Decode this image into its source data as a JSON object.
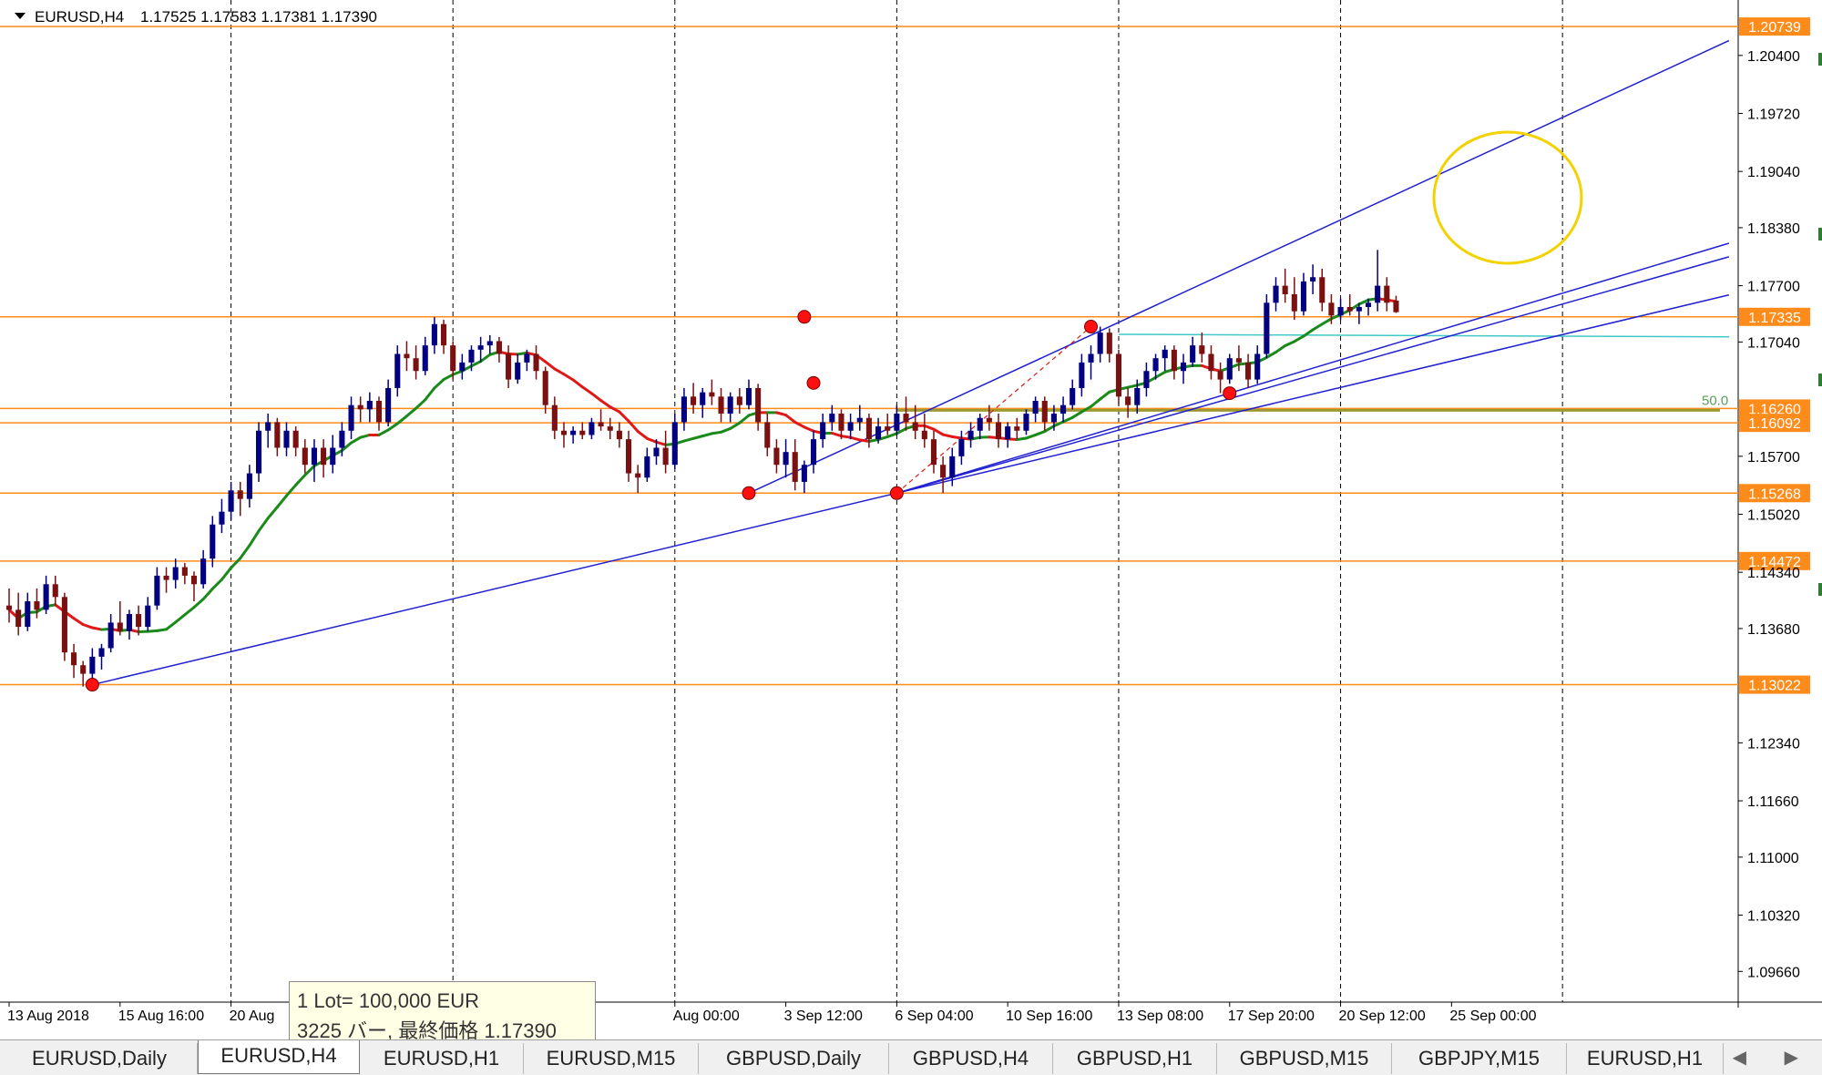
{
  "header": {
    "symbol": "EURUSD,H4",
    "ohlc": "1.17525 1.17583 1.17381 1.17390"
  },
  "colors": {
    "bull": "#000080",
    "bear": "#7a1010",
    "ma_up": "#1a8a1a",
    "ma_down": "#e01818",
    "level": "#ff8c1a",
    "trend": "#2020d0",
    "grid": "#000000",
    "circle": "#f2d200",
    "fib": "#9a9a30",
    "cyan": "#40c8c8"
  },
  "chart_data": {
    "type": "candlestick",
    "y_range": [
      1.093,
      1.2105
    ],
    "x_range": [
      0,
      187
    ],
    "x_ticks": [
      {
        "i": 0,
        "label": "13 Aug 2018"
      },
      {
        "i": 12,
        "label": "15 Aug 16:00"
      },
      {
        "i": 24,
        "label": "20 Aug"
      },
      {
        "i": 72,
        "label": "Aug 00:00"
      },
      {
        "i": 84,
        "label": "3 Sep 12:00"
      },
      {
        "i": 96,
        "label": "6 Sep 04:00"
      },
      {
        "i": 108,
        "label": "10 Sep 16:00"
      },
      {
        "i": 120,
        "label": "13 Sep 08:00"
      },
      {
        "i": 132,
        "label": "17 Sep 20:00"
      },
      {
        "i": 144,
        "label": "20 Sep 12:00"
      },
      {
        "i": 156,
        "label": "25 Sep 00:00"
      }
    ],
    "vgrid_i": [
      24,
      48,
      72,
      96,
      120,
      144,
      168
    ],
    "y_ticks": [
      "1.20400",
      "1.19720",
      "1.19040",
      "1.18380",
      "1.17700",
      "1.17040",
      "1.15700",
      "1.15020",
      "1.14340",
      "1.13680",
      "1.12340",
      "1.11660",
      "1.11000",
      "1.10320",
      "1.09660"
    ],
    "levels": [
      {
        "price": 1.20739,
        "label": "1.20739",
        "tag": true
      },
      {
        "price": 1.17335,
        "label": "1.17335",
        "tag": true
      },
      {
        "price": 1.1626,
        "label": "1.16260",
        "tag": true
      },
      {
        "price": 1.16092,
        "label": "1.16092",
        "tag": true
      },
      {
        "price": 1.15268,
        "label": "1.15268",
        "tag": true
      },
      {
        "price": 1.14472,
        "label": "1.14472",
        "tag": true
      },
      {
        "price": 1.13022,
        "label": "1.13022",
        "tag": true
      }
    ],
    "fib_label": "50.0",
    "anchors": [
      {
        "i": 86,
        "price": 1.17335
      },
      {
        "i": 9,
        "price": 1.13022
      },
      {
        "i": 80,
        "price": 1.15268
      },
      {
        "i": 87,
        "price": 1.1656
      },
      {
        "i": 96,
        "price": 1.15268
      },
      {
        "i": 117,
        "price": 1.1722
      },
      {
        "i": 132,
        "price": 1.1644
      }
    ],
    "ohlc": [
      [
        1.1395,
        1.1415,
        1.1375,
        1.139
      ],
      [
        1.139,
        1.141,
        1.136,
        1.137
      ],
      [
        1.137,
        1.141,
        1.1365,
        1.14
      ],
      [
        1.14,
        1.1415,
        1.138,
        1.139
      ],
      [
        1.139,
        1.143,
        1.1385,
        1.142
      ],
      [
        1.142,
        1.143,
        1.1395,
        1.1405
      ],
      [
        1.1405,
        1.141,
        1.133,
        1.134
      ],
      [
        1.134,
        1.135,
        1.131,
        1.1325
      ],
      [
        1.1325,
        1.133,
        1.13,
        1.1315
      ],
      [
        1.1315,
        1.1345,
        1.1302,
        1.1335
      ],
      [
        1.1335,
        1.135,
        1.132,
        1.1345
      ],
      [
        1.1345,
        1.1385,
        1.134,
        1.1375
      ],
      [
        1.1375,
        1.14,
        1.136,
        1.1365
      ],
      [
        1.1365,
        1.139,
        1.1355,
        1.1385
      ],
      [
        1.1385,
        1.1395,
        1.136,
        1.137
      ],
      [
        1.137,
        1.1405,
        1.1365,
        1.1395
      ],
      [
        1.1395,
        1.144,
        1.139,
        1.143
      ],
      [
        1.143,
        1.144,
        1.141,
        1.1425
      ],
      [
        1.1425,
        1.145,
        1.1415,
        1.144
      ],
      [
        1.144,
        1.1445,
        1.142,
        1.143
      ],
      [
        1.143,
        1.1435,
        1.14,
        1.142
      ],
      [
        1.142,
        1.146,
        1.1415,
        1.145
      ],
      [
        1.145,
        1.15,
        1.144,
        1.149
      ],
      [
        1.149,
        1.152,
        1.148,
        1.1505
      ],
      [
        1.1505,
        1.154,
        1.1495,
        1.153
      ],
      [
        1.153,
        1.154,
        1.15,
        1.152
      ],
      [
        1.152,
        1.156,
        1.151,
        1.155
      ],
      [
        1.155,
        1.161,
        1.154,
        1.16
      ],
      [
        1.16,
        1.162,
        1.158,
        1.161
      ],
      [
        1.161,
        1.1615,
        1.157,
        1.158
      ],
      [
        1.158,
        1.161,
        1.157,
        1.16
      ],
      [
        1.16,
        1.1605,
        1.157,
        1.158
      ],
      [
        1.158,
        1.159,
        1.155,
        1.156
      ],
      [
        1.156,
        1.159,
        1.154,
        1.158
      ],
      [
        1.158,
        1.159,
        1.1545,
        1.156
      ],
      [
        1.156,
        1.1595,
        1.155,
        1.158
      ],
      [
        1.158,
        1.161,
        1.157,
        1.16
      ],
      [
        1.16,
        1.164,
        1.159,
        1.163
      ],
      [
        1.163,
        1.164,
        1.161,
        1.1625
      ],
      [
        1.1625,
        1.1645,
        1.161,
        1.1635
      ],
      [
        1.1635,
        1.164,
        1.16,
        1.161
      ],
      [
        1.161,
        1.166,
        1.1605,
        1.165
      ],
      [
        1.165,
        1.17,
        1.164,
        1.169
      ],
      [
        1.169,
        1.1705,
        1.167,
        1.1685
      ],
      [
        1.1685,
        1.17,
        1.166,
        1.167
      ],
      [
        1.167,
        1.171,
        1.1665,
        1.17
      ],
      [
        1.17,
        1.1733,
        1.169,
        1.1725
      ],
      [
        1.1725,
        1.173,
        1.169,
        1.17
      ],
      [
        1.17,
        1.1705,
        1.166,
        1.167
      ],
      [
        1.167,
        1.169,
        1.166,
        1.168
      ],
      [
        1.168,
        1.17,
        1.167,
        1.1695
      ],
      [
        1.1695,
        1.171,
        1.168,
        1.17
      ],
      [
        1.17,
        1.1712,
        1.169,
        1.1705
      ],
      [
        1.1705,
        1.171,
        1.168,
        1.169
      ],
      [
        1.169,
        1.17,
        1.165,
        1.166
      ],
      [
        1.166,
        1.169,
        1.1655,
        1.168
      ],
      [
        1.168,
        1.1695,
        1.167,
        1.169
      ],
      [
        1.169,
        1.17,
        1.166,
        1.167
      ],
      [
        1.167,
        1.1675,
        1.162,
        1.163
      ],
      [
        1.163,
        1.164,
        1.159,
        1.16
      ],
      [
        1.16,
        1.161,
        1.158,
        1.1595
      ],
      [
        1.1595,
        1.1605,
        1.1585,
        1.16
      ],
      [
        1.16,
        1.161,
        1.159,
        1.1595
      ],
      [
        1.1595,
        1.1615,
        1.159,
        1.161
      ],
      [
        1.161,
        1.1625,
        1.16,
        1.1605
      ],
      [
        1.1605,
        1.1615,
        1.159,
        1.16
      ],
      [
        1.16,
        1.161,
        1.158,
        1.159
      ],
      [
        1.159,
        1.16,
        1.154,
        1.155
      ],
      [
        1.155,
        1.156,
        1.1527,
        1.1545
      ],
      [
        1.1545,
        1.158,
        1.154,
        1.157
      ],
      [
        1.157,
        1.159,
        1.156,
        1.158
      ],
      [
        1.158,
        1.16,
        1.155,
        1.156
      ],
      [
        1.156,
        1.162,
        1.1555,
        1.161
      ],
      [
        1.161,
        1.165,
        1.16,
        1.164
      ],
      [
        1.164,
        1.1656,
        1.162,
        1.163
      ],
      [
        1.163,
        1.165,
        1.1615,
        1.1645
      ],
      [
        1.1645,
        1.166,
        1.163,
        1.164
      ],
      [
        1.164,
        1.165,
        1.161,
        1.162
      ],
      [
        1.162,
        1.1645,
        1.161,
        1.164
      ],
      [
        1.164,
        1.165,
        1.162,
        1.163
      ],
      [
        1.163,
        1.166,
        1.1625,
        1.165
      ],
      [
        1.165,
        1.1655,
        1.16,
        1.161
      ],
      [
        1.161,
        1.162,
        1.157,
        1.158
      ],
      [
        1.158,
        1.159,
        1.155,
        1.156
      ],
      [
        1.156,
        1.159,
        1.1545,
        1.1575
      ],
      [
        1.1575,
        1.159,
        1.153,
        1.154
      ],
      [
        1.154,
        1.1565,
        1.1527,
        1.156
      ],
      [
        1.156,
        1.16,
        1.155,
        1.159
      ],
      [
        1.159,
        1.162,
        1.158,
        1.161
      ],
      [
        1.161,
        1.163,
        1.16,
        1.162
      ],
      [
        1.162,
        1.1625,
        1.159,
        1.16
      ],
      [
        1.16,
        1.162,
        1.159,
        1.161
      ],
      [
        1.161,
        1.163,
        1.16,
        1.1615
      ],
      [
        1.1615,
        1.162,
        1.158,
        1.159
      ],
      [
        1.159,
        1.1615,
        1.1585,
        1.1605
      ],
      [
        1.1605,
        1.162,
        1.1595,
        1.16
      ],
      [
        1.16,
        1.163,
        1.1595,
        1.162
      ],
      [
        1.162,
        1.164,
        1.16,
        1.161
      ],
      [
        1.161,
        1.163,
        1.159,
        1.16
      ],
      [
        1.16,
        1.162,
        1.158,
        1.159
      ],
      [
        1.159,
        1.16,
        1.155,
        1.156
      ],
      [
        1.156,
        1.157,
        1.1527,
        1.1545
      ],
      [
        1.1545,
        1.158,
        1.1535,
        1.157
      ],
      [
        1.157,
        1.16,
        1.156,
        1.159
      ],
      [
        1.159,
        1.161,
        1.158,
        1.16
      ],
      [
        1.16,
        1.162,
        1.159,
        1.1615
      ],
      [
        1.1615,
        1.163,
        1.16,
        1.161
      ],
      [
        1.161,
        1.162,
        1.158,
        1.159
      ],
      [
        1.159,
        1.161,
        1.158,
        1.1605
      ],
      [
        1.1605,
        1.1615,
        1.159,
        1.16
      ],
      [
        1.16,
        1.1625,
        1.1595,
        1.162
      ],
      [
        1.162,
        1.164,
        1.161,
        1.1635
      ],
      [
        1.1635,
        1.164,
        1.16,
        1.161
      ],
      [
        1.161,
        1.163,
        1.16,
        1.162
      ],
      [
        1.162,
        1.164,
        1.161,
        1.163
      ],
      [
        1.163,
        1.166,
        1.1625,
        1.165
      ],
      [
        1.165,
        1.169,
        1.164,
        1.168
      ],
      [
        1.168,
        1.17,
        1.166,
        1.169
      ],
      [
        1.169,
        1.1722,
        1.168,
        1.1715
      ],
      [
        1.1715,
        1.172,
        1.168,
        1.169
      ],
      [
        1.169,
        1.1695,
        1.163,
        1.164
      ],
      [
        1.164,
        1.165,
        1.1615,
        1.163
      ],
      [
        1.163,
        1.166,
        1.162,
        1.165
      ],
      [
        1.165,
        1.168,
        1.164,
        1.167
      ],
      [
        1.167,
        1.169,
        1.166,
        1.1685
      ],
      [
        1.1685,
        1.17,
        1.167,
        1.1695
      ],
      [
        1.1695,
        1.17,
        1.166,
        1.167
      ],
      [
        1.167,
        1.169,
        1.1655,
        1.168
      ],
      [
        1.168,
        1.171,
        1.1675,
        1.17
      ],
      [
        1.17,
        1.1715,
        1.168,
        1.169
      ],
      [
        1.169,
        1.17,
        1.166,
        1.167
      ],
      [
        1.167,
        1.168,
        1.1644,
        1.166
      ],
      [
        1.166,
        1.169,
        1.1655,
        1.1685
      ],
      [
        1.1685,
        1.17,
        1.167,
        1.168
      ],
      [
        1.168,
        1.169,
        1.165,
        1.166
      ],
      [
        1.166,
        1.17,
        1.1655,
        1.169
      ],
      [
        1.169,
        1.176,
        1.1685,
        1.175
      ],
      [
        1.175,
        1.178,
        1.174,
        1.177
      ],
      [
        1.177,
        1.179,
        1.175,
        1.176
      ],
      [
        1.176,
        1.178,
        1.173,
        1.174
      ],
      [
        1.174,
        1.1785,
        1.1735,
        1.1775
      ],
      [
        1.1775,
        1.1795,
        1.176,
        1.178
      ],
      [
        1.178,
        1.179,
        1.174,
        1.175
      ],
      [
        1.175,
        1.176,
        1.1725,
        1.1735
      ],
      [
        1.1735,
        1.1755,
        1.173,
        1.1745
      ],
      [
        1.1745,
        1.176,
        1.1735,
        1.174
      ],
      [
        1.174,
        1.175,
        1.1725,
        1.1745
      ],
      [
        1.1745,
        1.1755,
        1.1735,
        1.175
      ],
      [
        1.175,
        1.1812,
        1.174,
        1.177
      ],
      [
        1.177,
        1.178,
        1.174,
        1.175
      ],
      [
        1.17525,
        1.17583,
        1.17381,
        1.1739
      ]
    ]
  },
  "tooltip": {
    "line1": "1 Lot= 100,000 EUR",
    "line2": "3225 バー, 最終価格 1.17390"
  },
  "tabs": [
    {
      "label": "EURUSD,Daily",
      "w": 215,
      "active": false
    },
    {
      "label": "EURUSD,H4",
      "w": 178,
      "active": true
    },
    {
      "label": "EURUSD,H1",
      "w": 180,
      "active": false
    },
    {
      "label": "EURUSD,M15",
      "w": 192,
      "active": false
    },
    {
      "label": "GBPUSD,Daily",
      "w": 209,
      "active": false
    },
    {
      "label": "GBPUSD,H4",
      "w": 180,
      "active": false
    },
    {
      "label": "GBPUSD,H1",
      "w": 180,
      "active": false
    },
    {
      "label": "GBPUSD,M15",
      "w": 192,
      "active": false
    },
    {
      "label": "GBPJPY,M15",
      "w": 192,
      "active": false
    },
    {
      "label": "EURUSD,H1",
      "w": 172,
      "active": false
    }
  ],
  "nav": "◀ ▶"
}
